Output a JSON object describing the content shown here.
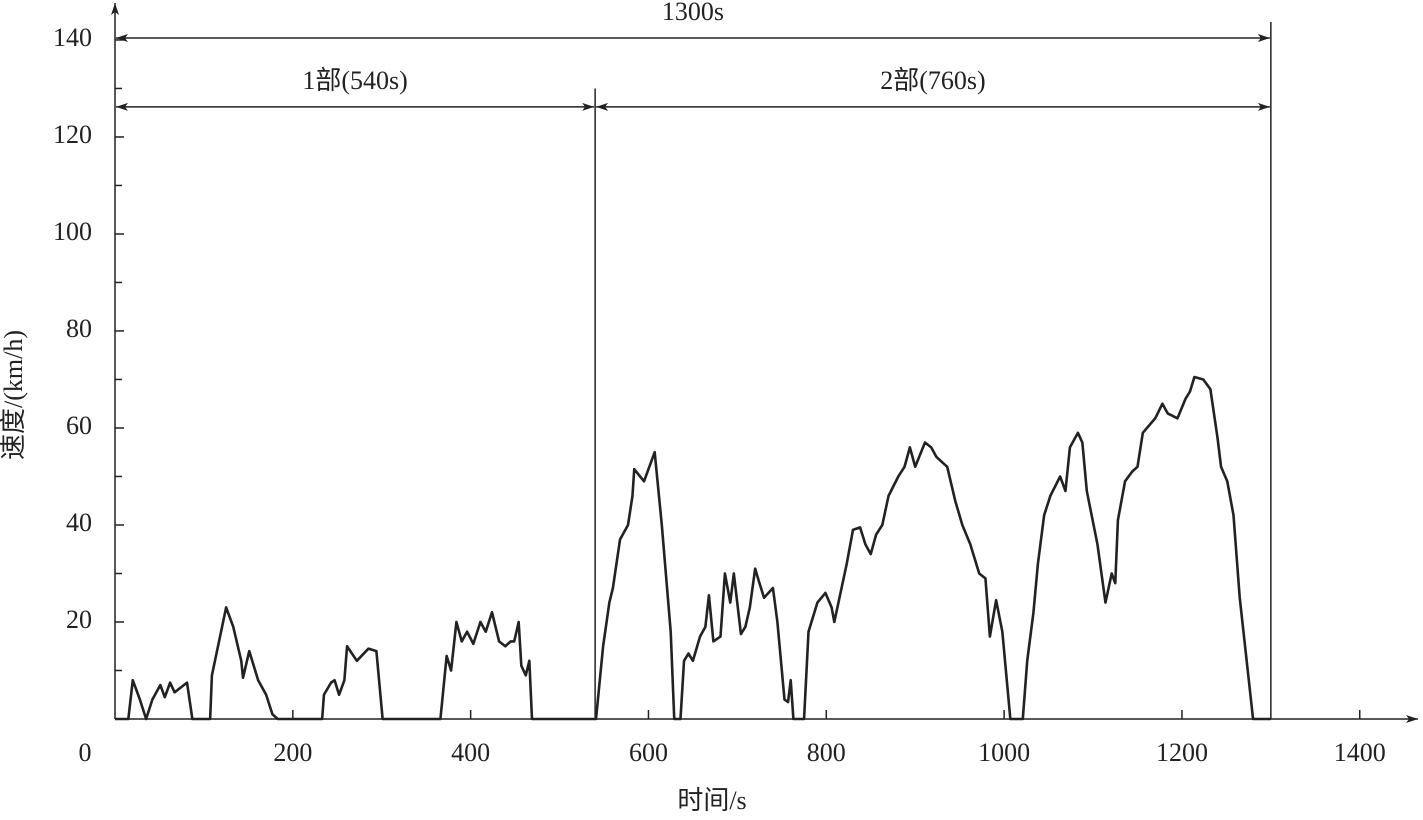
{
  "chart_data": {
    "type": "line",
    "x_label": "时间/s",
    "y_label": "速度/(km/h)",
    "xlim": [
      0,
      1470
    ],
    "ylim": [
      0,
      147
    ],
    "xticks": [
      0,
      200,
      400,
      600,
      800,
      1000,
      1200,
      1400
    ],
    "yticks": [
      20,
      40,
      60,
      80,
      100,
      120,
      140
    ],
    "y_minor_ticks": [
      10,
      30,
      50,
      70,
      90,
      110,
      130
    ],
    "grid": false,
    "series": [
      {
        "color": "#222222",
        "x": [
          0,
          15,
          20,
          28,
          35,
          42,
          51,
          56,
          62,
          67,
          74,
          81,
          87,
          107,
          109,
          125,
          133,
          142,
          144,
          151,
          161,
          170,
          177,
          183,
          233,
          235,
          243,
          247,
          252,
          258,
          261,
          272,
          285,
          294,
          301,
          366,
          373,
          378,
          384,
          390,
          396,
          403,
          411,
          417,
          424,
          432,
          439,
          445,
          449,
          454,
          457,
          462,
          466,
          469,
          541,
          549,
          556,
          560,
          568,
          577,
          582,
          584,
          595,
          607,
          615,
          625,
          629,
          636,
          640,
          645,
          650,
          658,
          664,
          668,
          673,
          681,
          686,
          692,
          696,
          704,
          709,
          714,
          720,
          724,
          730,
          735,
          740,
          745,
          753,
          757,
          760,
          763,
          775,
          780,
          790,
          799,
          806,
          809,
          816,
          823,
          830,
          838,
          844,
          850,
          856,
          863,
          870,
          881,
          888,
          894,
          900,
          911,
          918,
          924,
          936,
          945,
          953,
          962,
          972,
          979,
          984,
          991,
          998,
          1007,
          1021,
          1026,
          1033,
          1038,
          1045,
          1052,
          1063,
          1069,
          1074,
          1083,
          1088,
          1093,
          1105,
          1114,
          1121,
          1125,
          1128,
          1136,
          1144,
          1150,
          1156,
          1170,
          1178,
          1184,
          1195,
          1204,
          1209,
          1214,
          1224,
          1232,
          1240,
          1244,
          1251,
          1258,
          1265,
          1280,
          1300
        ],
        "values": [
          0,
          0,
          8,
          4,
          0,
          4,
          7,
          4.5,
          7.5,
          5.5,
          6.5,
          7.5,
          0,
          0,
          9,
          23,
          19,
          12,
          8.5,
          14,
          8,
          5,
          1,
          0,
          0,
          5,
          7.5,
          8,
          5,
          8,
          15,
          12,
          14.5,
          14,
          0,
          0,
          13,
          10,
          20,
          16,
          18,
          15.5,
          20,
          18,
          22,
          16,
          15,
          16,
          16,
          20,
          11,
          9,
          12,
          0,
          0,
          15,
          24,
          27,
          37,
          40,
          46,
          51.5,
          49,
          55,
          40,
          18,
          0,
          0,
          12,
          13.5,
          12,
          17,
          19,
          25.5,
          16,
          17,
          30,
          24,
          30,
          17.5,
          19,
          23,
          31,
          28.5,
          25,
          26,
          27,
          20,
          4,
          3.5,
          8,
          0,
          0,
          18,
          24,
          26,
          23,
          20,
          26,
          32,
          39,
          39.5,
          36,
          34,
          38,
          40,
          46,
          50,
          52,
          56,
          52,
          57,
          56,
          54,
          52,
          45,
          40,
          36,
          30,
          29,
          17,
          24.5,
          18,
          0,
          0,
          12,
          22,
          32,
          42,
          46,
          50,
          47,
          56,
          59,
          57,
          47,
          36,
          24,
          30,
          28,
          41,
          49,
          51,
          52,
          59,
          62,
          65,
          63,
          62,
          66,
          67.5,
          70.5,
          70,
          68,
          58,
          52,
          49,
          42,
          25,
          0,
          0
        ]
      }
    ],
    "annotations": [
      {
        "text": "1300s",
        "start": 0,
        "end": 1300,
        "y": 140.4
      },
      {
        "text": "1部(540s)",
        "start": 0,
        "end": 540,
        "y": 126.2
      },
      {
        "text": "2部(760s)",
        "start": 540,
        "end": 1300,
        "y": 126.2
      }
    ],
    "vlines": [
      {
        "x": 540,
        "top": 130
      },
      {
        "x": 1300,
        "top": 143.7
      }
    ]
  }
}
